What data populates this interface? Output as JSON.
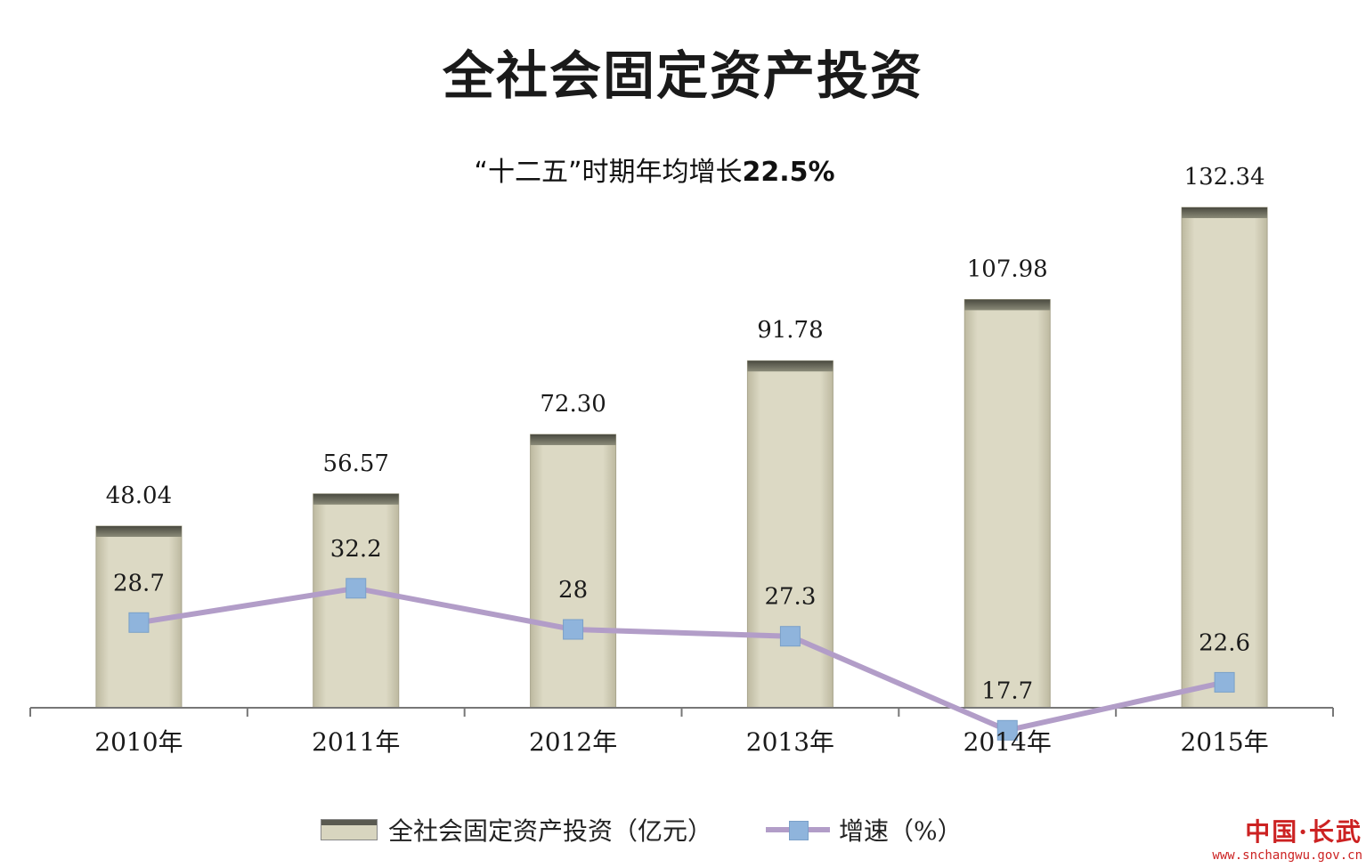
{
  "title": "全社会固定资产投资",
  "subtitle": "“十二五”时期年均增长",
  "subtitle_value": "22.5%",
  "chart_data": {
    "type": "bar",
    "categories": [
      "2010年",
      "2011年",
      "2012年",
      "2013年",
      "2014年",
      "2015年"
    ],
    "series": [
      {
        "name": "全社会固定资产投资（亿元）",
        "type": "bar",
        "values": [
          48.04,
          56.57,
          72.3,
          91.78,
          107.98,
          132.34
        ],
        "labels": [
          "48.04",
          "56.57",
          "72.30",
          "91.78",
          "107.98",
          "132.34"
        ],
        "color": "#d8d5bf"
      },
      {
        "name": "增速（%）",
        "type": "line",
        "values": [
          28.7,
          32.2,
          28,
          27.3,
          17.7,
          22.6
        ],
        "labels": [
          "28.7",
          "32.2",
          "28",
          "27.3",
          "17.7",
          "22.6"
        ],
        "color": "#b29dc8",
        "marker_color": "#8fb4dc"
      }
    ],
    "grid": false,
    "legend_position": "bottom"
  },
  "legend": {
    "bar_label": "全社会固定资产投资（亿元）",
    "line_label": "增速（%）"
  },
  "watermark": {
    "logo": "中国·长武",
    "url": "www.snchangwu.gov.cn"
  }
}
